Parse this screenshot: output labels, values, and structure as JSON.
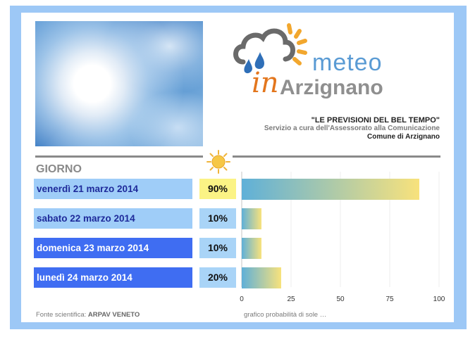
{
  "header": {
    "logo_meteo": "meteo",
    "logo_in": "in",
    "logo_town": "Arzignano",
    "tagline": "\"LE PREVISIONI DEL BEL TEMPO\"",
    "service": "Servizio a cura dell'Assessorato alla Comunicazione",
    "comune": "Comune di Arzignano"
  },
  "table": {
    "heading": "GIORNO",
    "rows": [
      {
        "day": "venerdì 21 marzo 2014",
        "pct": "90%"
      },
      {
        "day": "sabato 22 marzo 2014",
        "pct": "10%"
      },
      {
        "day": "domenica 23 marzo 2014",
        "pct": "10%"
      },
      {
        "day": "lunedì 24 marzo 2014",
        "pct": "20%"
      }
    ]
  },
  "chart_data": {
    "type": "bar",
    "orientation": "horizontal",
    "categories": [
      "venerdì 21 marzo 2014",
      "sabato 22 marzo 2014",
      "domenica 23 marzo 2014",
      "lunedì 24 marzo 2014"
    ],
    "values": [
      90,
      10,
      10,
      20
    ],
    "xlim": [
      0,
      100
    ],
    "xticks": [
      0,
      25,
      50,
      75,
      100
    ],
    "grid": true,
    "bar_gradient": [
      "#5fb0d8",
      "#f8e27c"
    ]
  },
  "footer": {
    "source_label": "Fonte scientifica: ",
    "source_name": "ARPAV VENETO",
    "caption": "grafico probabilità di sole …"
  },
  "colors": {
    "frame": "#9dc8f6",
    "day_light": "#9fcdf8",
    "day_dark": "#3f6df2",
    "pct_highlight": "#fbf385",
    "logo_orange": "#e3761d",
    "logo_blue": "#5a9bd4"
  },
  "icons": {
    "logo": "cloud-rain-sun-icon",
    "header_sun": "sun-icon"
  }
}
